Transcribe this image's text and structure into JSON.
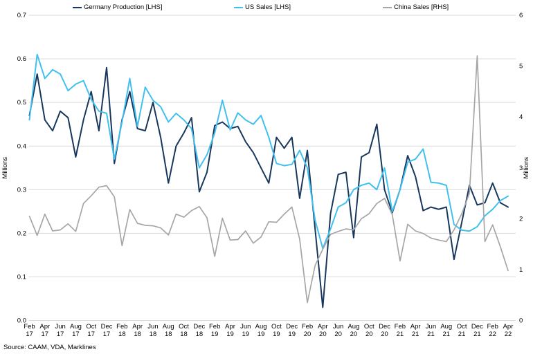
{
  "source_note": "Source: CAAM, VDA, Marklines",
  "chart_data": {
    "type": "line",
    "title": "",
    "grid": true,
    "legend_position": "top",
    "x": [
      "Feb 17",
      "Mar 17",
      "Apr 17",
      "May 17",
      "Jun 17",
      "Jul 17",
      "Aug 17",
      "Sep 17",
      "Oct 17",
      "Nov 17",
      "Dec 17",
      "Jan 18",
      "Feb 18",
      "Mar 18",
      "Apr 18",
      "May 18",
      "Jun 18",
      "Jul 18",
      "Aug 18",
      "Sep 18",
      "Oct 18",
      "Nov 18",
      "Dec 18",
      "Jan 19",
      "Feb 19",
      "Mar 19",
      "Apr 19",
      "May 19",
      "Jun 19",
      "Jul 19",
      "Aug 19",
      "Sep 19",
      "Oct 19",
      "Nov 19",
      "Dec 19",
      "Jan 20",
      "Feb 20",
      "Mar 20",
      "Apr 20",
      "May 20",
      "Jun 20",
      "Jul 20",
      "Aug 20",
      "Sep 20",
      "Oct 20",
      "Nov 20",
      "Dec 20",
      "Jan 21",
      "Feb 21",
      "Mar 21",
      "Apr 21",
      "May 21",
      "Jun 21",
      "Jul 21",
      "Aug 21",
      "Sep 21",
      "Oct 21",
      "Nov 21",
      "Dec 21",
      "Jan 22",
      "Feb 22",
      "Mar 22",
      "Apr 22"
    ],
    "tick_every": 2,
    "left_axis": {
      "label": "Millions",
      "min": 0,
      "max": 0.7,
      "ticks": [
        "0.0",
        "0.1",
        "0.2",
        "0.3",
        "0.4",
        "0.5",
        "0.6",
        "0.7"
      ]
    },
    "right_axis": {
      "label": "Millions",
      "min": 0,
      "max": 6,
      "ticks": [
        "0",
        "1",
        "2",
        "3",
        "4",
        "5",
        "6"
      ]
    },
    "gridline_color": "#d9d9d9",
    "series": [
      {
        "name": "Germany Production [LHS]",
        "axis": "left",
        "color": "#17375d",
        "width": 2,
        "values": [
          0.47,
          0.565,
          0.46,
          0.435,
          0.48,
          0.465,
          0.375,
          0.46,
          0.525,
          0.435,
          0.58,
          0.36,
          0.46,
          0.525,
          0.44,
          0.435,
          0.5,
          0.42,
          0.315,
          0.4,
          0.43,
          0.465,
          0.295,
          0.34,
          0.447,
          0.455,
          0.44,
          0.445,
          0.41,
          0.385,
          0.35,
          0.315,
          0.42,
          0.395,
          0.42,
          0.28,
          0.39,
          0.21,
          0.03,
          0.245,
          0.335,
          0.34,
          0.19,
          0.375,
          0.385,
          0.45,
          0.3,
          0.247,
          0.3,
          0.378,
          0.33,
          0.252,
          0.26,
          0.255,
          0.26,
          0.14,
          0.225,
          0.31,
          0.265,
          0.27,
          0.315,
          0.27,
          0.26
        ]
      },
      {
        "name": "US Sales [LHS]",
        "axis": "left",
        "color": "#41c0f0",
        "width": 2,
        "values": [
          0.46,
          0.61,
          0.555,
          0.575,
          0.565,
          0.527,
          0.542,
          0.55,
          0.507,
          0.48,
          0.475,
          0.37,
          0.455,
          0.555,
          0.445,
          0.535,
          0.505,
          0.49,
          0.455,
          0.475,
          0.46,
          0.44,
          0.35,
          0.38,
          0.43,
          0.505,
          0.437,
          0.476,
          0.46,
          0.45,
          0.47,
          0.42,
          0.36,
          0.355,
          0.358,
          0.39,
          0.35,
          0.23,
          0.165,
          0.21,
          0.26,
          0.27,
          0.3,
          0.31,
          0.315,
          0.3,
          0.35,
          0.25,
          0.3,
          0.363,
          0.37,
          0.393,
          0.317,
          0.315,
          0.31,
          0.22,
          0.207,
          0.205,
          0.215,
          0.24,
          0.255,
          0.275,
          0.285
        ]
      },
      {
        "name": "China Sales [RHS]",
        "axis": "right",
        "color": "#a6a6a6",
        "width": 1.7,
        "values": [
          2.05,
          1.67,
          2.09,
          1.76,
          1.78,
          1.9,
          1.75,
          2.3,
          2.45,
          2.62,
          2.65,
          2.43,
          1.47,
          2.18,
          1.91,
          1.87,
          1.86,
          1.82,
          1.68,
          2.09,
          2.03,
          2.16,
          2.24,
          2.02,
          1.26,
          2.01,
          1.58,
          1.59,
          1.76,
          1.52,
          1.64,
          1.94,
          1.93,
          2.09,
          2.23,
          1.6,
          0.35,
          1.08,
          1.4,
          1.69,
          1.75,
          1.8,
          1.78,
          2.0,
          2.1,
          2.3,
          2.4,
          2.08,
          1.17,
          1.89,
          1.76,
          1.71,
          1.62,
          1.58,
          1.55,
          1.78,
          2.1,
          2.5,
          5.2,
          1.55,
          1.88,
          1.45,
          0.98
        ]
      }
    ]
  }
}
